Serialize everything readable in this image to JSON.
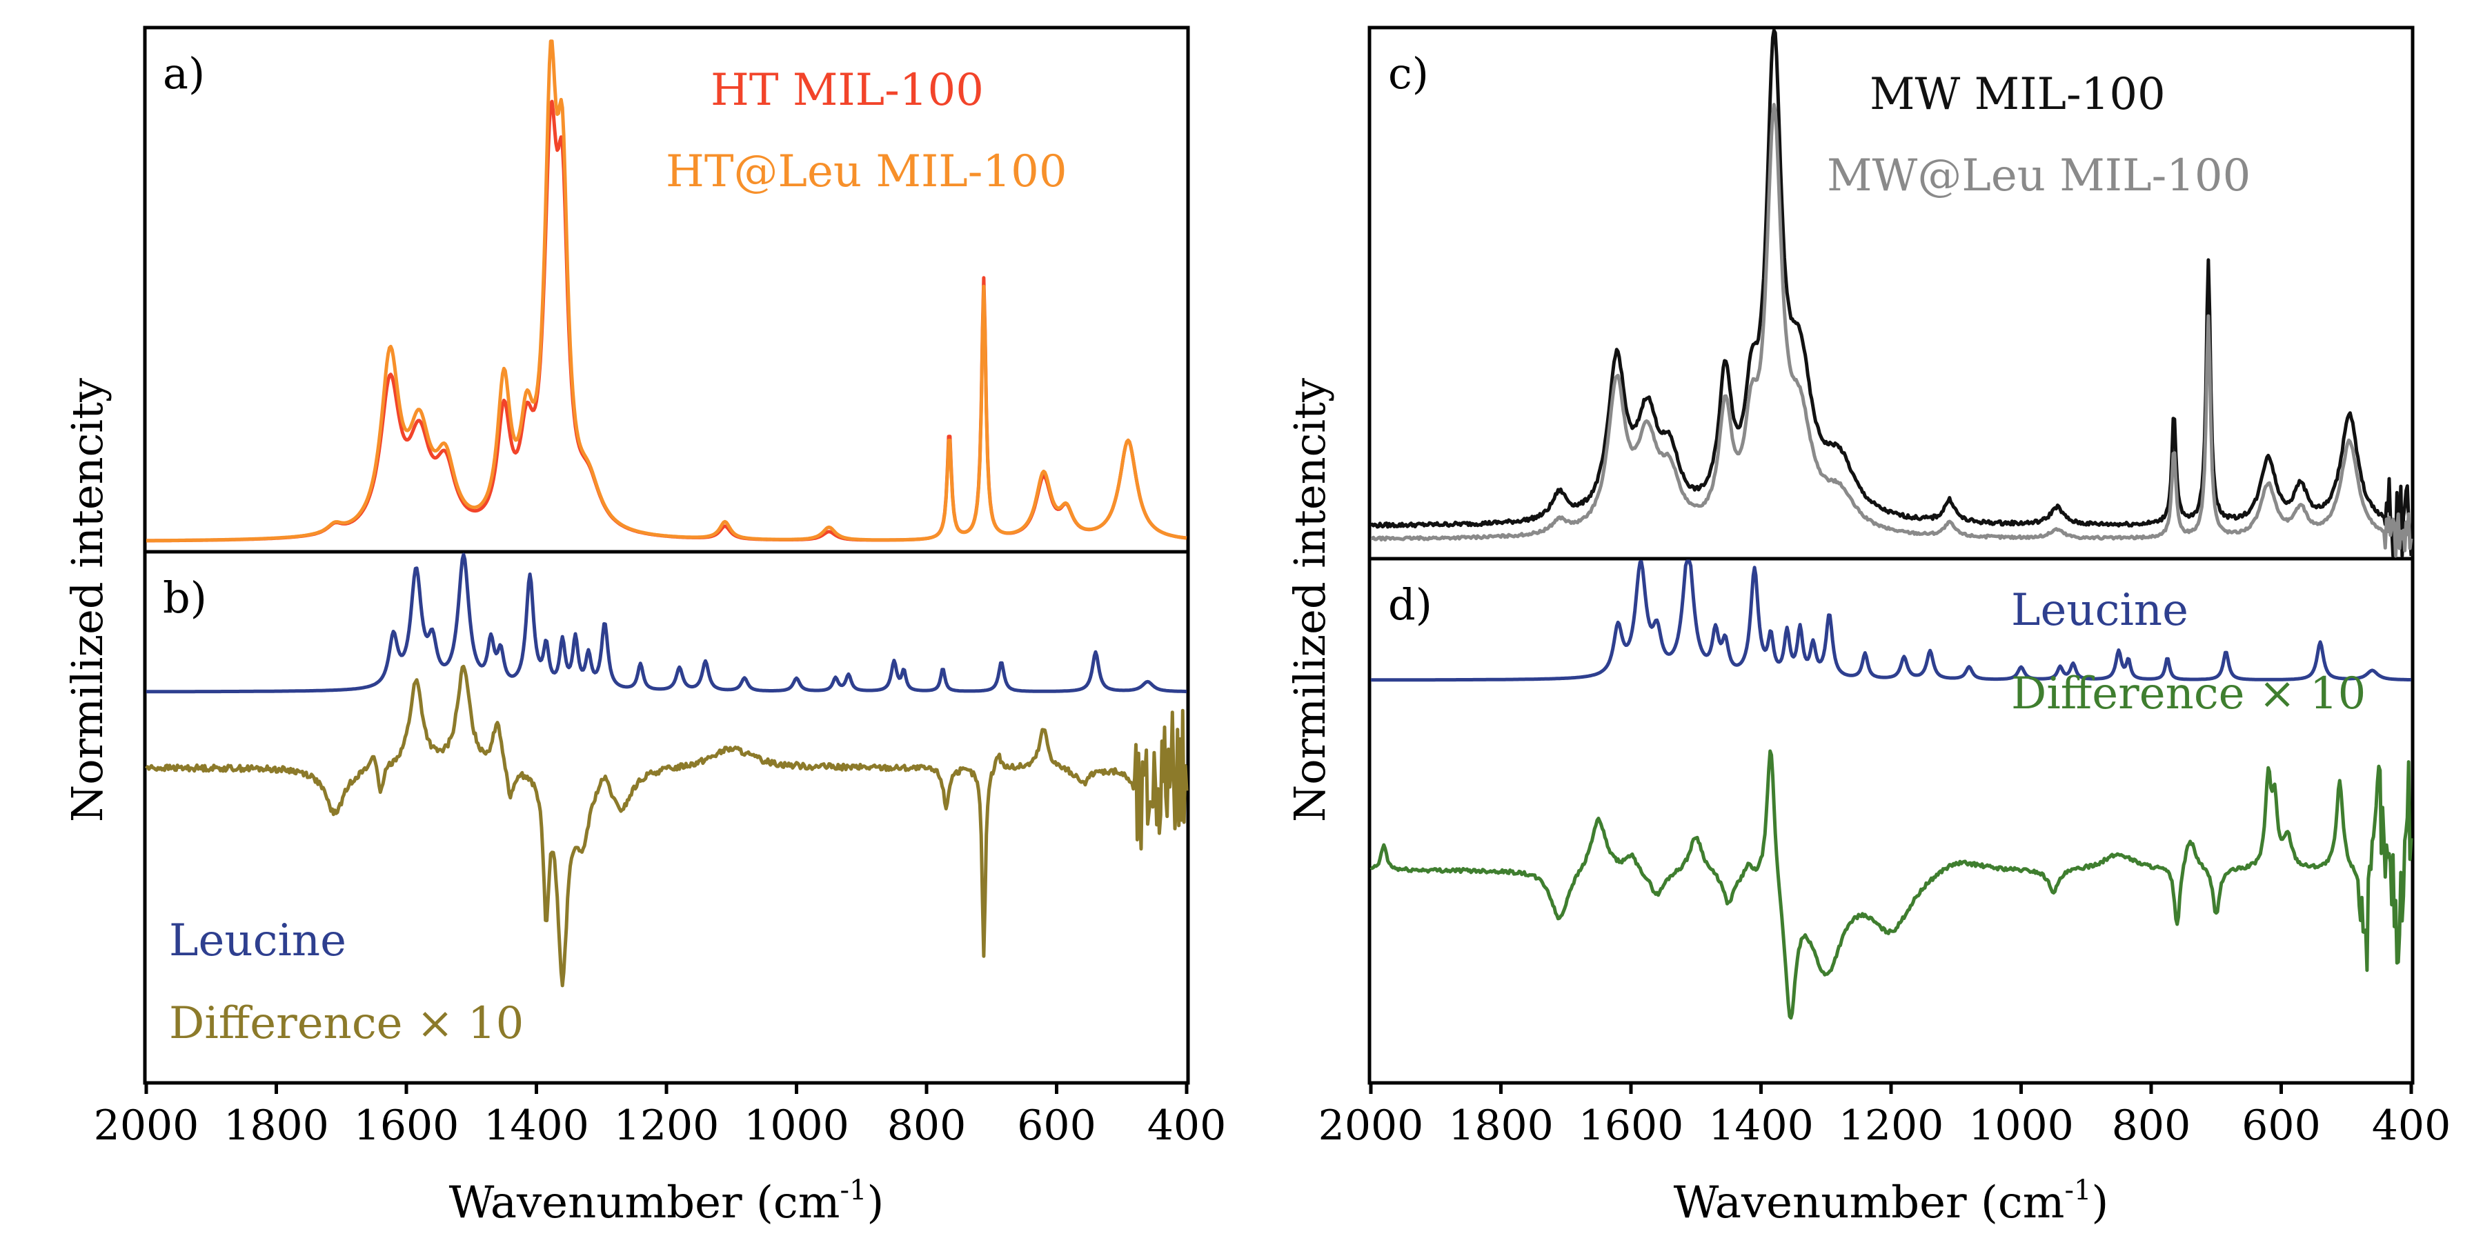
{
  "figure": {
    "y_axis_label": "Normilized intencity",
    "x_axis_label": "Wavenumber (cm",
    "x_axis_unit_sup": "-1",
    "x_axis_label_close": ")",
    "x_ticks": [
      "2000",
      "1800",
      "1600",
      "1400",
      "1200",
      "1000",
      "800",
      "600",
      "400"
    ],
    "colors": {
      "ht": "#f2442a",
      "ht_leu": "#f7902a",
      "mw": "#111111",
      "mw_leu": "#8a8a8a",
      "leucine": "#2e3f8f",
      "diff_b": "#8c7a2a",
      "diff_d": "#3f7e2f",
      "axis": "#000000"
    }
  },
  "chart_data": [
    {
      "id": "a",
      "panel_label": "a)",
      "type": "line",
      "xlabel": "Wavenumber (cm-1)",
      "ylabel": "Normilized intencity",
      "xlim": [
        2000,
        400
      ],
      "ylim": [
        0,
        1.2
      ],
      "legend_position": "top-right",
      "series": [
        {
          "name": "HT MIL-100",
          "color_key": "ht",
          "baseline": 0.02,
          "peaks": [
            [
              1710,
              0.02,
              14
            ],
            [
              1625,
              0.34,
              18
            ],
            [
              1580,
              0.2,
              20
            ],
            [
              1540,
              0.14,
              18
            ],
            [
              1450,
              0.26,
              12
            ],
            [
              1415,
              0.18,
              12
            ],
            [
              1378,
              0.82,
              12
            ],
            [
              1360,
              0.62,
              10
            ],
            [
              1320,
              0.1,
              22
            ],
            [
              1110,
              0.03,
              10
            ],
            [
              950,
              0.02,
              12
            ],
            [
              765,
              0.25,
              4
            ],
            [
              712,
              0.6,
              4
            ],
            [
              620,
              0.14,
              14
            ],
            [
              585,
              0.06,
              12
            ],
            [
              490,
              0.23,
              16
            ]
          ]
        },
        {
          "name": "HT@Leu MIL-100",
          "color_key": "ht_leu",
          "baseline": 0.02,
          "peaks": [
            [
              1710,
              0.02,
              14
            ],
            [
              1625,
              0.4,
              17
            ],
            [
              1580,
              0.22,
              20
            ],
            [
              1540,
              0.15,
              18
            ],
            [
              1450,
              0.33,
              12
            ],
            [
              1415,
              0.2,
              12
            ],
            [
              1378,
              0.94,
              11
            ],
            [
              1360,
              0.7,
              10
            ],
            [
              1320,
              0.1,
              22
            ],
            [
              1110,
              0.04,
              10
            ],
            [
              950,
              0.03,
              12
            ],
            [
              765,
              0.24,
              4
            ],
            [
              712,
              0.58,
              4
            ],
            [
              620,
              0.15,
              14
            ],
            [
              585,
              0.06,
              12
            ],
            [
              490,
              0.23,
              16
            ]
          ]
        }
      ]
    },
    {
      "id": "b",
      "panel_label": "b)",
      "type": "line",
      "xlim": [
        2000,
        400
      ],
      "ylim": [
        -1.0,
        0.6
      ],
      "legend_position": "bottom-left",
      "series": [
        {
          "name": "Leucine",
          "color_key": "leucine",
          "baseline": 0.0,
          "noise": 0,
          "peaks": [
            [
              1620,
              0.15,
              8
            ],
            [
              1585,
              0.35,
              10
            ],
            [
              1560,
              0.12,
              8
            ],
            [
              1512,
              0.4,
              10
            ],
            [
              1470,
              0.13,
              6
            ],
            [
              1455,
              0.1,
              6
            ],
            [
              1410,
              0.34,
              7
            ],
            [
              1385,
              0.12,
              5
            ],
            [
              1360,
              0.14,
              5
            ],
            [
              1340,
              0.15,
              5
            ],
            [
              1320,
              0.1,
              5
            ],
            [
              1295,
              0.2,
              6
            ],
            [
              1240,
              0.08,
              5
            ],
            [
              1180,
              0.07,
              6
            ],
            [
              1140,
              0.09,
              6
            ],
            [
              1080,
              0.04,
              6
            ],
            [
              1000,
              0.04,
              6
            ],
            [
              940,
              0.04,
              5
            ],
            [
              920,
              0.05,
              5
            ],
            [
              850,
              0.09,
              5
            ],
            [
              835,
              0.06,
              4
            ],
            [
              775,
              0.07,
              4
            ],
            [
              685,
              0.09,
              5
            ],
            [
              540,
              0.12,
              6
            ],
            [
              460,
              0.03,
              10
            ]
          ]
        },
        {
          "name": "Difference × 10",
          "color_key": "diff_b",
          "baseline": -0.05,
          "noise": 0.03,
          "noise_range": [
            480,
            400
          ],
          "peaks": [
            [
              1710,
              -0.14,
              18
            ],
            [
              1650,
              0.06,
              6
            ],
            [
              1640,
              -0.1,
              5
            ],
            [
              1585,
              0.26,
              12
            ],
            [
              1512,
              0.3,
              12
            ],
            [
              1460,
              0.14,
              8
            ],
            [
              1440,
              -0.1,
              6
            ],
            [
              1385,
              -0.4,
              5
            ],
            [
              1360,
              -0.6,
              9
            ],
            [
              1330,
              -0.2,
              14
            ],
            [
              1295,
              0.05,
              10
            ],
            [
              1270,
              -0.12,
              20
            ],
            [
              1100,
              0.06,
              40
            ],
            [
              770,
              -0.12,
              5
            ],
            [
              712,
              -0.58,
              3
            ],
            [
              690,
              0.05,
              5
            ],
            [
              620,
              0.12,
              8
            ],
            [
              560,
              -0.05,
              12
            ],
            [
              470,
              -0.12,
              12
            ]
          ]
        }
      ]
    },
    {
      "id": "c",
      "panel_label": "c)",
      "type": "line",
      "xlabel": "Wavenumber (cm-1)",
      "ylabel": "Normilized intencity",
      "xlim": [
        2000,
        400
      ],
      "ylim": [
        0,
        1.2
      ],
      "legend_position": "top-right",
      "series": [
        {
          "name": "MW MIL-100",
          "color_key": "mw",
          "baseline": 0.07,
          "noise": 0.015,
          "noise_range": [
            440,
            400
          ],
          "peaks": [
            [
              1710,
              0.06,
              14
            ],
            [
              1622,
              0.35,
              16
            ],
            [
              1575,
              0.22,
              20
            ],
            [
              1540,
              0.12,
              18
            ],
            [
              1455,
              0.3,
              12
            ],
            [
              1415,
              0.2,
              12
            ],
            [
              1380,
              1.02,
              14
            ],
            [
              1340,
              0.3,
              22
            ],
            [
              1280,
              0.12,
              30
            ],
            [
              1110,
              0.05,
              10
            ],
            [
              945,
              0.04,
              12
            ],
            [
              765,
              0.25,
              4
            ],
            [
              712,
              0.6,
              4
            ],
            [
              620,
              0.15,
              14
            ],
            [
              570,
              0.08,
              12
            ],
            [
              495,
              0.25,
              16
            ]
          ]
        },
        {
          "name": "MW@Leu MIL-100",
          "color_key": "mw_leu",
          "baseline": 0.04,
          "noise": 0.01,
          "noise_range": [
            440,
            400
          ],
          "peaks": [
            [
              1710,
              0.03,
              14
            ],
            [
              1622,
              0.33,
              16
            ],
            [
              1575,
              0.2,
              20
            ],
            [
              1540,
              0.11,
              18
            ],
            [
              1455,
              0.26,
              12
            ],
            [
              1415,
              0.18,
              12
            ],
            [
              1380,
              0.9,
              14
            ],
            [
              1340,
              0.22,
              22
            ],
            [
              1280,
              0.08,
              30
            ],
            [
              1110,
              0.03,
              10
            ],
            [
              945,
              0.02,
              12
            ],
            [
              765,
              0.2,
              4
            ],
            [
              712,
              0.5,
              4
            ],
            [
              620,
              0.12,
              14
            ],
            [
              570,
              0.06,
              12
            ],
            [
              495,
              0.22,
              16
            ]
          ]
        }
      ]
    },
    {
      "id": "d",
      "panel_label": "d)",
      "type": "line",
      "xlim": [
        2000,
        400
      ],
      "ylim": [
        -1.05,
        0.6
      ],
      "legend_position": "top-right",
      "series": [
        {
          "name": "Leucine",
          "color_key": "leucine",
          "baseline": 0.0,
          "noise": 0,
          "peaks": [
            [
              1620,
              0.15,
              8
            ],
            [
              1585,
              0.35,
              10
            ],
            [
              1560,
              0.12,
              8
            ],
            [
              1512,
              0.4,
              10
            ],
            [
              1470,
              0.13,
              6
            ],
            [
              1455,
              0.1,
              6
            ],
            [
              1410,
              0.34,
              7
            ],
            [
              1385,
              0.12,
              5
            ],
            [
              1360,
              0.14,
              5
            ],
            [
              1340,
              0.15,
              5
            ],
            [
              1320,
              0.1,
              5
            ],
            [
              1295,
              0.2,
              6
            ],
            [
              1240,
              0.08,
              5
            ],
            [
              1180,
              0.07,
              6
            ],
            [
              1140,
              0.09,
              6
            ],
            [
              1080,
              0.04,
              6
            ],
            [
              1000,
              0.04,
              6
            ],
            [
              940,
              0.04,
              5
            ],
            [
              920,
              0.05,
              5
            ],
            [
              850,
              0.09,
              5
            ],
            [
              835,
              0.06,
              4
            ],
            [
              775,
              0.07,
              4
            ],
            [
              685,
              0.09,
              5
            ],
            [
              540,
              0.12,
              6
            ],
            [
              460,
              0.03,
              10
            ]
          ]
        },
        {
          "name": "Difference × 10",
          "color_key": "diff_d",
          "baseline": -0.33,
          "noise": 0.02,
          "noise_range": [
            480,
            400
          ],
          "peaks": [
            [
              1980,
              0.08,
              5
            ],
            [
              1710,
              -0.16,
              16
            ],
            [
              1650,
              0.17,
              14
            ],
            [
              1600,
              0.05,
              10
            ],
            [
              1560,
              -0.08,
              14
            ],
            [
              1500,
              0.12,
              12
            ],
            [
              1450,
              -0.1,
              10
            ],
            [
              1420,
              0.04,
              6
            ],
            [
              1385,
              0.46,
              7
            ],
            [
              1355,
              -0.42,
              10
            ],
            [
              1300,
              -0.3,
              30
            ],
            [
              1200,
              -0.18,
              40
            ],
            [
              1100,
              0.05,
              50
            ],
            [
              950,
              -0.07,
              10
            ],
            [
              850,
              0.05,
              30
            ],
            [
              760,
              -0.2,
              5
            ],
            [
              740,
              0.1,
              10
            ],
            [
              700,
              -0.15,
              6
            ],
            [
              620,
              0.28,
              5
            ],
            [
              610,
              0.2,
              5
            ],
            [
              590,
              0.1,
              8
            ],
            [
              510,
              0.28,
              6
            ],
            [
              470,
              -0.25,
              6
            ],
            [
              450,
              0.3,
              5
            ],
            [
              420,
              -0.28,
              4
            ],
            [
              405,
              0.32,
              3
            ]
          ]
        }
      ]
    }
  ],
  "legends": {
    "a": [
      "HT MIL-100",
      "HT@Leu MIL-100"
    ],
    "b": [
      "Leucine",
      "Difference × 10"
    ],
    "c": [
      "MW MIL-100",
      "MW@Leu MIL-100"
    ],
    "d": [
      "Leucine",
      "Difference × 10"
    ]
  }
}
